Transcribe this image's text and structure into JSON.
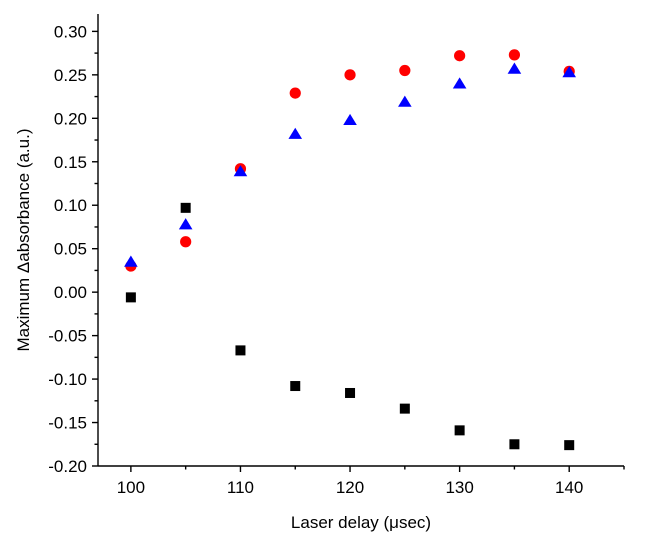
{
  "chart_data": {
    "type": "scatter",
    "xlabel": "Laser delay (μsec)",
    "ylabel": "Maximum Δabsorbance (a.u.)",
    "xlim": [
      97,
      145
    ],
    "ylim": [
      -0.2,
      0.32
    ],
    "xticks": [
      100,
      110,
      120,
      130,
      140
    ],
    "xtick_labels": [
      "100",
      "110",
      "120",
      "130",
      "140"
    ],
    "yticks": [
      -0.2,
      -0.15,
      -0.1,
      -0.05,
      0.0,
      0.05,
      0.1,
      0.15,
      0.2,
      0.25,
      0.3
    ],
    "ytick_labels": [
      "-0.20",
      "-0.15",
      "-0.10",
      "-0.05",
      "0.00",
      "0.05",
      "0.10",
      "0.15",
      "0.20",
      "0.25",
      "0.30"
    ],
    "grid": false,
    "legend": "none",
    "series": [
      {
        "marker": "square",
        "color": "#000000",
        "x": [
          100,
          105,
          110,
          115,
          120,
          125,
          130,
          135,
          140
        ],
        "y": [
          -0.006,
          0.097,
          -0.067,
          -0.108,
          -0.116,
          -0.134,
          -0.159,
          -0.175,
          -0.176
        ]
      },
      {
        "marker": "circle",
        "color": "#ff0000",
        "x": [
          100,
          105,
          110,
          115,
          120,
          125,
          130,
          135,
          140
        ],
        "y": [
          0.03,
          0.058,
          0.142,
          0.229,
          0.25,
          0.255,
          0.272,
          0.273,
          0.254
        ]
      },
      {
        "marker": "triangle",
        "color": "#0000ff",
        "x": [
          100,
          105,
          110,
          115,
          120,
          125,
          130,
          135,
          140
        ],
        "y": [
          0.035,
          0.078,
          0.139,
          0.182,
          0.198,
          0.219,
          0.24,
          0.257,
          0.253
        ]
      }
    ]
  }
}
